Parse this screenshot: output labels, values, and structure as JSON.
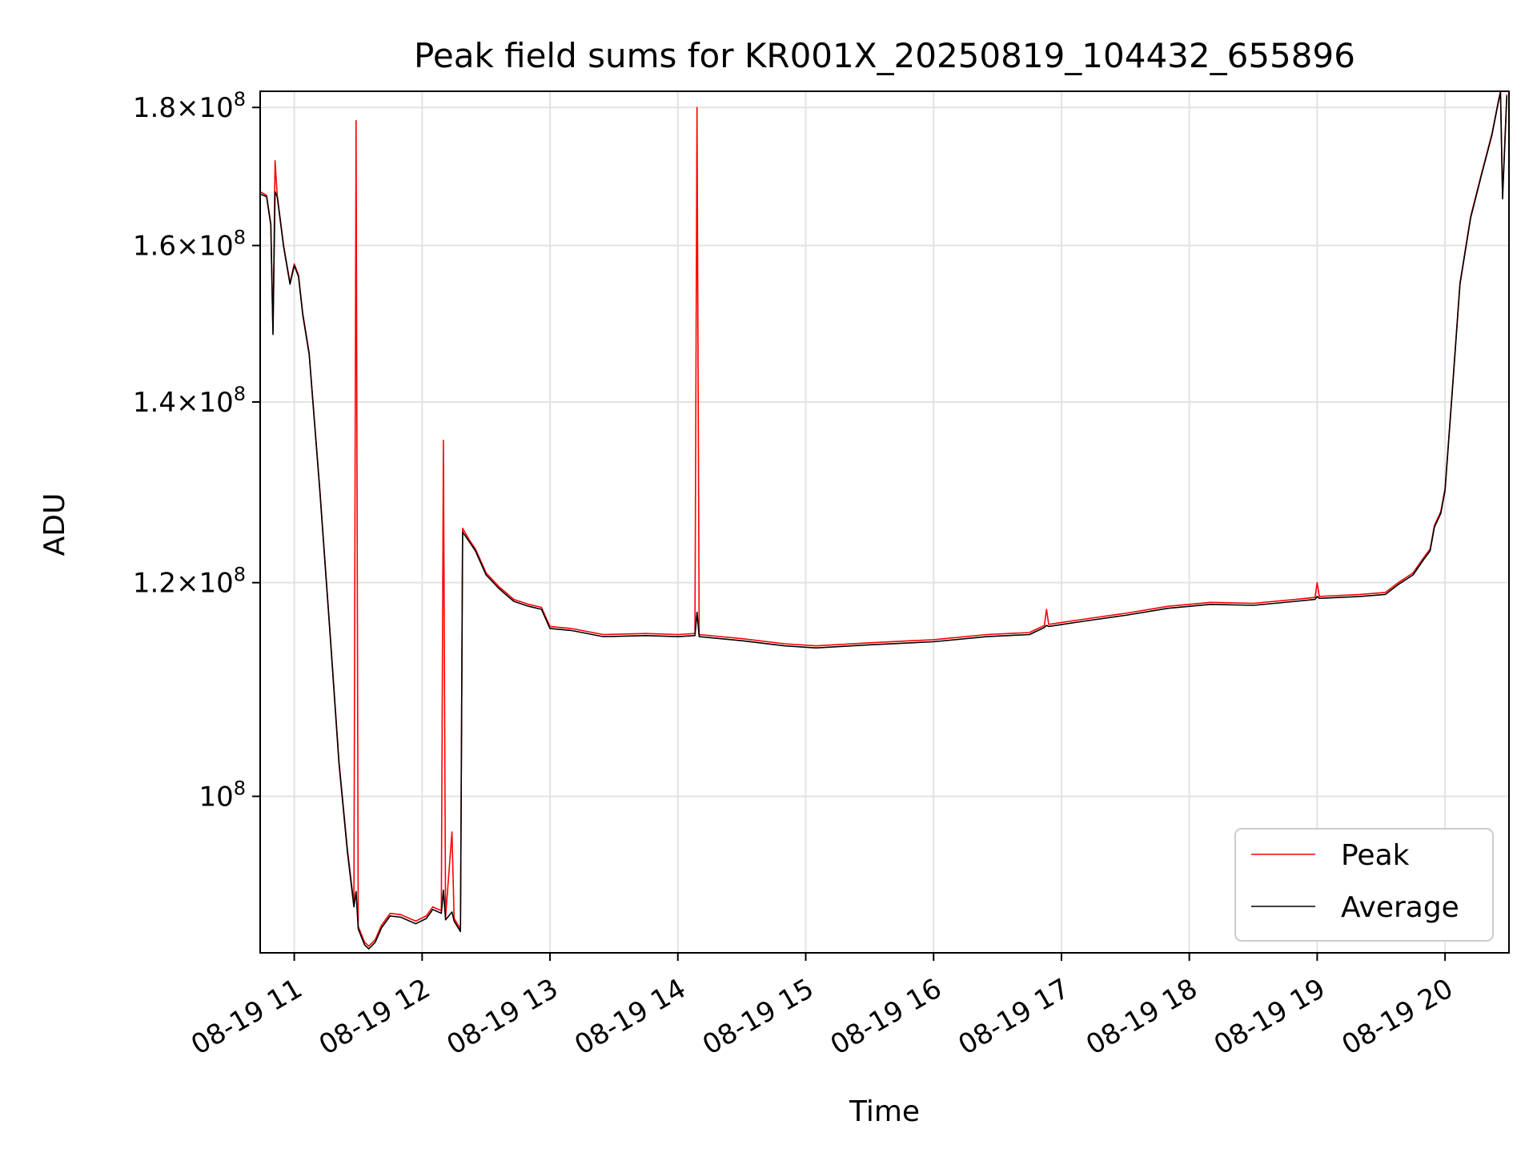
{
  "chart_data": {
    "type": "line",
    "title": "Peak field sums for KR001X_20250819_104432_655896",
    "xlabel": "Time",
    "ylabel": "ADU",
    "y_scale": "log",
    "xlim": [
      "08-19 10:44",
      "08-19 20:30"
    ],
    "ylim": [
      87500000,
      182500000
    ],
    "grid": true,
    "legend_position": "lower-right",
    "x_ticks": [
      "08-19 11",
      "08-19 12",
      "08-19 13",
      "08-19 14",
      "08-19 15",
      "08-19 16",
      "08-19 17",
      "08-19 18",
      "08-19 19",
      "08-19 20"
    ],
    "y_ticks": [
      {
        "value": 100000000,
        "label": "10^8"
      },
      {
        "value": 120000000,
        "label": "1.2×10^8"
      },
      {
        "value": 140000000,
        "label": "1.4×10^8"
      },
      {
        "value": 160000000,
        "label": "1.6×10^8"
      },
      {
        "value": 180000000,
        "label": "1.8×10^8"
      }
    ],
    "series": [
      {
        "name": "Peak",
        "color": "#ff0000",
        "points": [
          [
            "08-19 10:44",
            167500000
          ],
          [
            "08-19 10:47",
            167000000
          ],
          [
            "08-19 10:49",
            163000000
          ],
          [
            "08-19 10:50",
            148500000
          ],
          [
            "08-19 10:51",
            172000000
          ],
          [
            "08-19 10:52",
            167000000
          ],
          [
            "08-19 10:55",
            160000000
          ],
          [
            "08-19 10:58",
            155000000
          ],
          [
            "08-19 11:00",
            157500000
          ],
          [
            "08-19 11:02",
            156000000
          ],
          [
            "08-19 11:04",
            151000000
          ],
          [
            "08-19 11:07",
            146000000
          ],
          [
            "08-19 11:12",
            130000000
          ],
          [
            "08-19 11:17",
            114500000
          ],
          [
            "08-19 11:21",
            103000000
          ],
          [
            "08-19 11:25",
            95500000
          ],
          [
            "08-19 11:28",
            91200000
          ],
          [
            "08-19 11:29",
            178000000
          ],
          [
            "08-19 11:30",
            89500000
          ],
          [
            "08-19 11:33",
            88300000
          ],
          [
            "08-19 11:35",
            88000000
          ],
          [
            "08-19 11:38",
            88500000
          ],
          [
            "08-19 11:41",
            89600000
          ],
          [
            "08-19 11:45",
            90500000
          ],
          [
            "08-19 11:50",
            90400000
          ],
          [
            "08-19 11:57",
            89900000
          ],
          [
            "08-19 12:02",
            90300000
          ],
          [
            "08-19 12:05",
            91000000
          ],
          [
            "08-19 12:09",
            90700000
          ],
          [
            "08-19 12:10",
            135500000
          ],
          [
            "08-19 12:11",
            90200000
          ],
          [
            "08-19 12:14",
            97000000
          ],
          [
            "08-19 12:15",
            90100000
          ],
          [
            "08-19 12:18",
            89300000
          ],
          [
            "08-19 12:19",
            125700000
          ],
          [
            "08-19 12:22",
            124500000
          ],
          [
            "08-19 12:25",
            123500000
          ],
          [
            "08-19 12:30",
            121000000
          ],
          [
            "08-19 12:36",
            119600000
          ],
          [
            "08-19 12:43",
            118300000
          ],
          [
            "08-19 12:50",
            117800000
          ],
          [
            "08-19 12:56",
            117500000
          ],
          [
            "08-19 13:00",
            115600000
          ],
          [
            "08-19 13:10",
            115400000
          ],
          [
            "08-19 13:25",
            114800000
          ],
          [
            "08-19 13:45",
            114900000
          ],
          [
            "08-19 14:00",
            114800000
          ],
          [
            "08-19 14:08",
            114900000
          ],
          [
            "08-19 14:09",
            180000000
          ],
          [
            "08-19 14:10",
            114800000
          ],
          [
            "08-19 14:30",
            114400000
          ],
          [
            "08-19 14:50",
            113900000
          ],
          [
            "08-19 15:05",
            113700000
          ],
          [
            "08-19 15:30",
            114000000
          ],
          [
            "08-19 16:00",
            114300000
          ],
          [
            "08-19 16:25",
            114800000
          ],
          [
            "08-19 16:45",
            115000000
          ],
          [
            "08-19 16:52",
            115700000
          ],
          [
            "08-19 16:53",
            117300000
          ],
          [
            "08-19 16:54",
            115800000
          ],
          [
            "08-19 17:10",
            116300000
          ],
          [
            "08-19 17:30",
            116900000
          ],
          [
            "08-19 17:50",
            117600000
          ],
          [
            "08-19 18:10",
            118000000
          ],
          [
            "08-19 18:30",
            117900000
          ],
          [
            "08-19 18:50",
            118300000
          ],
          [
            "08-19 18:59",
            118500000
          ],
          [
            "08-19 19:00",
            120000000
          ],
          [
            "08-19 19:01",
            118600000
          ],
          [
            "08-19 19:20",
            118800000
          ],
          [
            "08-19 19:32",
            119000000
          ],
          [
            "08-19 19:38",
            120000000
          ],
          [
            "08-19 19:45",
            121000000
          ],
          [
            "08-19 19:50",
            122600000
          ],
          [
            "08-19 19:53",
            123500000
          ],
          [
            "08-19 19:55",
            126000000
          ],
          [
            "08-19 19:58",
            127500000
          ],
          [
            "08-19 20:00",
            130000000
          ],
          [
            "08-19 20:03",
            140000000
          ],
          [
            "08-19 20:07",
            155000000
          ],
          [
            "08-19 20:12",
            164000000
          ],
          [
            "08-19 20:17",
            170000000
          ],
          [
            "08-19 20:22",
            176000000
          ],
          [
            "08-19 20:25",
            181000000
          ],
          [
            "08-19 20:26",
            182500000
          ],
          [
            "08-19 20:27",
            167000000
          ],
          [
            "08-19 20:29",
            182000000
          ]
        ]
      },
      {
        "name": "Average",
        "color": "#000000",
        "points": [
          [
            "08-19 10:44",
            167200000
          ],
          [
            "08-19 10:47",
            166800000
          ],
          [
            "08-19 10:49",
            162800000
          ],
          [
            "08-19 10:50",
            148300000
          ],
          [
            "08-19 10:51",
            167500000
          ],
          [
            "08-19 10:52",
            166800000
          ],
          [
            "08-19 10:55",
            159800000
          ],
          [
            "08-19 10:58",
            154800000
          ],
          [
            "08-19 11:00",
            157300000
          ],
          [
            "08-19 11:02",
            155800000
          ],
          [
            "08-19 11:04",
            150800000
          ],
          [
            "08-19 11:07",
            145800000
          ],
          [
            "08-19 11:12",
            129800000
          ],
          [
            "08-19 11:17",
            114300000
          ],
          [
            "08-19 11:21",
            102800000
          ],
          [
            "08-19 11:25",
            95300000
          ],
          [
            "08-19 11:28",
            91000000
          ],
          [
            "08-19 11:29",
            92200000
          ],
          [
            "08-19 11:30",
            89300000
          ],
          [
            "08-19 11:33",
            88100000
          ],
          [
            "08-19 11:35",
            87800000
          ],
          [
            "08-19 11:38",
            88300000
          ],
          [
            "08-19 11:41",
            89400000
          ],
          [
            "08-19 11:45",
            90300000
          ],
          [
            "08-19 11:50",
            90200000
          ],
          [
            "08-19 11:57",
            89700000
          ],
          [
            "08-19 12:02",
            90100000
          ],
          [
            "08-19 12:05",
            90800000
          ],
          [
            "08-19 12:09",
            90500000
          ],
          [
            "08-19 12:10",
            92300000
          ],
          [
            "08-19 12:11",
            90000000
          ],
          [
            "08-19 12:14",
            90600000
          ],
          [
            "08-19 12:15",
            89900000
          ],
          [
            "08-19 12:18",
            89100000
          ],
          [
            "08-19 12:19",
            125300000
          ],
          [
            "08-19 12:22",
            124300000
          ],
          [
            "08-19 12:25",
            123300000
          ],
          [
            "08-19 12:30",
            120800000
          ],
          [
            "08-19 12:36",
            119400000
          ],
          [
            "08-19 12:43",
            118100000
          ],
          [
            "08-19 12:50",
            117600000
          ],
          [
            "08-19 12:56",
            117300000
          ],
          [
            "08-19 13:00",
            115400000
          ],
          [
            "08-19 13:10",
            115200000
          ],
          [
            "08-19 13:25",
            114600000
          ],
          [
            "08-19 13:45",
            114700000
          ],
          [
            "08-19 14:00",
            114600000
          ],
          [
            "08-19 14:08",
            114700000
          ],
          [
            "08-19 14:09",
            117000000
          ],
          [
            "08-19 14:10",
            114600000
          ],
          [
            "08-19 14:30",
            114200000
          ],
          [
            "08-19 14:50",
            113700000
          ],
          [
            "08-19 15:05",
            113500000
          ],
          [
            "08-19 15:30",
            113800000
          ],
          [
            "08-19 16:00",
            114100000
          ],
          [
            "08-19 16:25",
            114600000
          ],
          [
            "08-19 16:45",
            114800000
          ],
          [
            "08-19 16:52",
            115500000
          ],
          [
            "08-19 16:53",
            115700000
          ],
          [
            "08-19 16:54",
            115600000
          ],
          [
            "08-19 17:10",
            116100000
          ],
          [
            "08-19 17:30",
            116700000
          ],
          [
            "08-19 17:50",
            117400000
          ],
          [
            "08-19 18:10",
            117800000
          ],
          [
            "08-19 18:30",
            117700000
          ],
          [
            "08-19 18:50",
            118100000
          ],
          [
            "08-19 18:59",
            118300000
          ],
          [
            "08-19 19:00",
            118600000
          ],
          [
            "08-19 19:01",
            118400000
          ],
          [
            "08-19 19:20",
            118600000
          ],
          [
            "08-19 19:32",
            118800000
          ],
          [
            "08-19 19:38",
            119800000
          ],
          [
            "08-19 19:45",
            120800000
          ],
          [
            "08-19 19:50",
            122400000
          ],
          [
            "08-19 19:53",
            123300000
          ],
          [
            "08-19 19:55",
            125800000
          ],
          [
            "08-19 19:58",
            127300000
          ],
          [
            "08-19 20:00",
            129800000
          ],
          [
            "08-19 20:03",
            139800000
          ],
          [
            "08-19 20:07",
            154800000
          ],
          [
            "08-19 20:12",
            163800000
          ],
          [
            "08-19 20:17",
            169800000
          ],
          [
            "08-19 20:22",
            175800000
          ],
          [
            "08-19 20:25",
            180800000
          ],
          [
            "08-19 20:26",
            182300000
          ],
          [
            "08-19 20:27",
            166500000
          ],
          [
            "08-19 20:29",
            181800000
          ]
        ]
      }
    ]
  }
}
